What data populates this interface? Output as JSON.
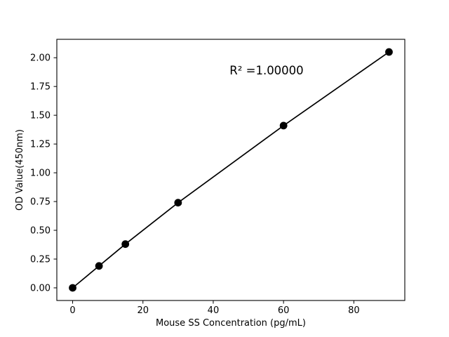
{
  "chart_data": {
    "type": "line",
    "title": "",
    "xlabel": "Mouse SS Concentration (pg/mL)",
    "ylabel": "OD Value(450nm)",
    "x": [
      0,
      7.5,
      15,
      30,
      60,
      90
    ],
    "y": [
      0.0,
      0.19,
      0.38,
      0.74,
      1.41,
      2.05
    ],
    "xlim": [
      -4.5,
      94.5
    ],
    "ylim": [
      -0.11,
      2.16
    ],
    "xticks": [
      0,
      20,
      40,
      60,
      80
    ],
    "xtick_labels": [
      "0",
      "20",
      "40",
      "60",
      "80"
    ],
    "yticks": [
      0.0,
      0.25,
      0.5,
      0.75,
      1.0,
      1.25,
      1.5,
      1.75,
      2.0
    ],
    "ytick_labels": [
      "0.00",
      "0.25",
      "0.50",
      "0.75",
      "1.00",
      "1.25",
      "1.50",
      "1.75",
      "2.00"
    ],
    "annotation": {
      "text": "R² =1.00000",
      "x": 55,
      "y": 1.9
    },
    "line_color": "#000000",
    "marker_color": "#000000",
    "marker": "circle",
    "grid": false,
    "legend": null,
    "background_color": "#ffffff"
  }
}
